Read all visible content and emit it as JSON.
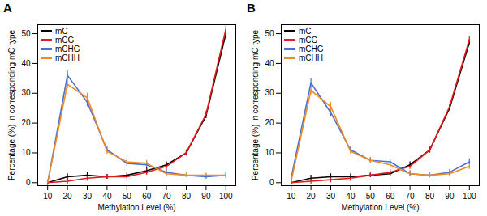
{
  "chart_data": [
    {
      "type": "line",
      "title": "A",
      "x_label": "Methylation Level (%)",
      "y_label": "Percentage (%) in corresponding mC type",
      "x": [
        10,
        20,
        30,
        40,
        50,
        60,
        70,
        80,
        90,
        100
      ],
      "xlim": [
        5,
        105
      ],
      "xticks": [
        10,
        20,
        30,
        40,
        50,
        60,
        70,
        80,
        90,
        100
      ],
      "ylim": [
        -1,
        53
      ],
      "yticks": [
        0,
        10,
        20,
        30,
        40,
        50
      ],
      "legend": "top-left",
      "grid": false,
      "series": [
        {
          "name": "mC",
          "color": "#000000",
          "values": [
            0,
            2,
            2.5,
            2,
            2.5,
            4,
            6,
            10,
            22.5,
            50
          ],
          "errors": [
            0.8,
            1,
            1,
            0.8,
            0.8,
            1,
            1,
            1,
            1,
            1
          ]
        },
        {
          "name": "mCG",
          "color": "#e41a1c",
          "values": [
            0,
            0.5,
            1.5,
            2,
            2,
            3.5,
            5.5,
            10,
            23,
            51.5
          ],
          "errors": [
            0.8,
            1,
            1,
            0.8,
            0.8,
            1,
            1,
            1,
            1,
            1
          ]
        },
        {
          "name": "mCHG",
          "color": "#4a6fd0",
          "values": [
            0,
            36,
            27,
            11,
            6.5,
            6,
            3.5,
            2.5,
            2,
            2.5
          ],
          "errors": [
            0.8,
            1.5,
            1.5,
            1,
            1,
            1,
            1,
            0.8,
            0.8,
            1
          ]
        },
        {
          "name": "mCHH",
          "color": "#f08a24",
          "values": [
            0,
            33,
            28.5,
            10.5,
            7,
            6.5,
            3,
            2.5,
            2.5,
            2.5
          ],
          "errors": [
            0.8,
            1.5,
            1.5,
            1,
            1,
            1,
            1,
            0.8,
            0.8,
            1
          ]
        }
      ]
    },
    {
      "type": "line",
      "title": "B",
      "x_label": "Methylation Level (%)",
      "y_label": "Percentage (%) in corresponding mC type",
      "x": [
        10,
        20,
        30,
        40,
        50,
        60,
        70,
        80,
        90,
        100
      ],
      "xlim": [
        5,
        105
      ],
      "xticks": [
        10,
        20,
        30,
        40,
        50,
        60,
        70,
        80,
        90,
        100
      ],
      "ylim": [
        -1,
        53
      ],
      "yticks": [
        0,
        10,
        20,
        30,
        40,
        50
      ],
      "legend": "top-left",
      "grid": false,
      "series": [
        {
          "name": "mC",
          "color": "#000000",
          "values": [
            0,
            1.5,
            2,
            2,
            2.5,
            3,
            6,
            11,
            25,
            47
          ],
          "errors": [
            0.8,
            1,
            1,
            1,
            0.8,
            1,
            1,
            1,
            1,
            1
          ]
        },
        {
          "name": "mCG",
          "color": "#e41a1c",
          "values": [
            0,
            0.5,
            1,
            1.5,
            2.5,
            3.5,
            5.5,
            11,
            25.5,
            48
          ],
          "errors": [
            0.8,
            1,
            1,
            1,
            0.8,
            1,
            1,
            1,
            1,
            1
          ]
        },
        {
          "name": "mCHG",
          "color": "#4a6fd0",
          "values": [
            1.5,
            33.5,
            23.5,
            11,
            7.5,
            7,
            3,
            2.5,
            3.5,
            7
          ],
          "errors": [
            0.8,
            1.5,
            1.5,
            1,
            1,
            1,
            1,
            0.8,
            1,
            1
          ]
        },
        {
          "name": "mCHH",
          "color": "#f08a24",
          "values": [
            0.5,
            31,
            25.5,
            10.5,
            7.5,
            6,
            3,
            2.5,
            3,
            5.5
          ],
          "errors": [
            0.8,
            1.5,
            1.5,
            1,
            1,
            1,
            1,
            0.8,
            1,
            1
          ]
        }
      ]
    }
  ]
}
